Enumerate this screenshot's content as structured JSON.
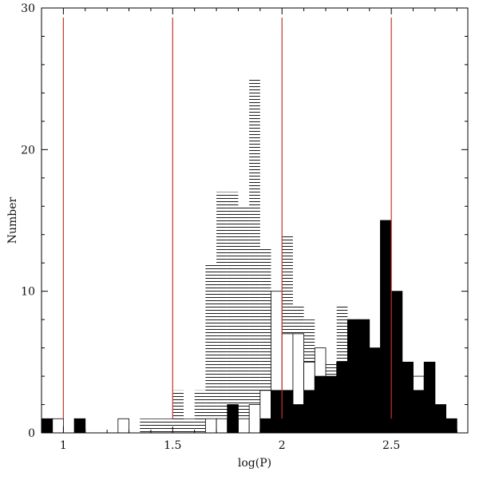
{
  "chart_data": {
    "type": "bar",
    "title": "",
    "xlabel": "log(P)",
    "ylabel": "Number",
    "xlim": [
      0.9,
      2.85
    ],
    "ylim": [
      0,
      30
    ],
    "xticks": [
      1,
      1.5,
      2,
      2.5
    ],
    "xtick_labels": [
      "1",
      "1.5",
      "2",
      "2.5"
    ],
    "yticks": [
      0,
      10,
      20,
      30
    ],
    "ytick_labels": [
      "0",
      "10",
      "20",
      "30"
    ],
    "bin_width": 0.05,
    "grid": false,
    "legend": "none",
    "vertical_lines": {
      "x": [
        1,
        1.5,
        2,
        2.5
      ],
      "color": "#c0392b"
    },
    "series": [
      {
        "style": "hatched",
        "x": [
          1.35,
          1.4,
          1.45,
          1.5,
          1.55,
          1.6,
          1.65,
          1.7,
          1.75,
          1.8,
          1.85,
          1.9,
          1.95,
          2.0,
          2.05,
          2.1,
          2.15,
          2.2,
          2.25,
          2.3,
          2.35,
          2.4,
          2.45,
          2.5,
          2.55,
          2.6,
          2.65
        ],
        "values": [
          1,
          1,
          1,
          3,
          1,
          3,
          12,
          17,
          17,
          16,
          25,
          13,
          7,
          14,
          9,
          8,
          6,
          5,
          9,
          8,
          5,
          4,
          6,
          5,
          4,
          4,
          5
        ]
      },
      {
        "style": "outline",
        "x": [
          0.95,
          1.25,
          1.65,
          1.7,
          1.75,
          1.8,
          1.85,
          1.9,
          1.95,
          2.0,
          2.05,
          2.1,
          2.15,
          2.2,
          2.25,
          2.3,
          2.35,
          2.4,
          2.45,
          2.5,
          2.55,
          2.6
        ],
        "values": [
          1,
          1,
          1,
          1,
          1,
          1,
          2,
          3,
          10,
          7,
          7,
          5,
          6,
          3,
          4,
          3,
          6,
          5,
          3,
          5,
          3,
          4
        ]
      },
      {
        "style": "filled",
        "x": [
          0.9,
          1.05,
          1.75,
          1.9,
          1.95,
          2.0,
          2.05,
          2.1,
          2.15,
          2.2,
          2.25,
          2.3,
          2.35,
          2.4,
          2.45,
          2.5,
          2.55,
          2.6,
          2.65,
          2.7,
          2.75
        ],
        "values": [
          1,
          1,
          2,
          1,
          3,
          3,
          2,
          3,
          4,
          4,
          5,
          8,
          8,
          6,
          15,
          10,
          5,
          3,
          5,
          2,
          1
        ]
      }
    ]
  }
}
